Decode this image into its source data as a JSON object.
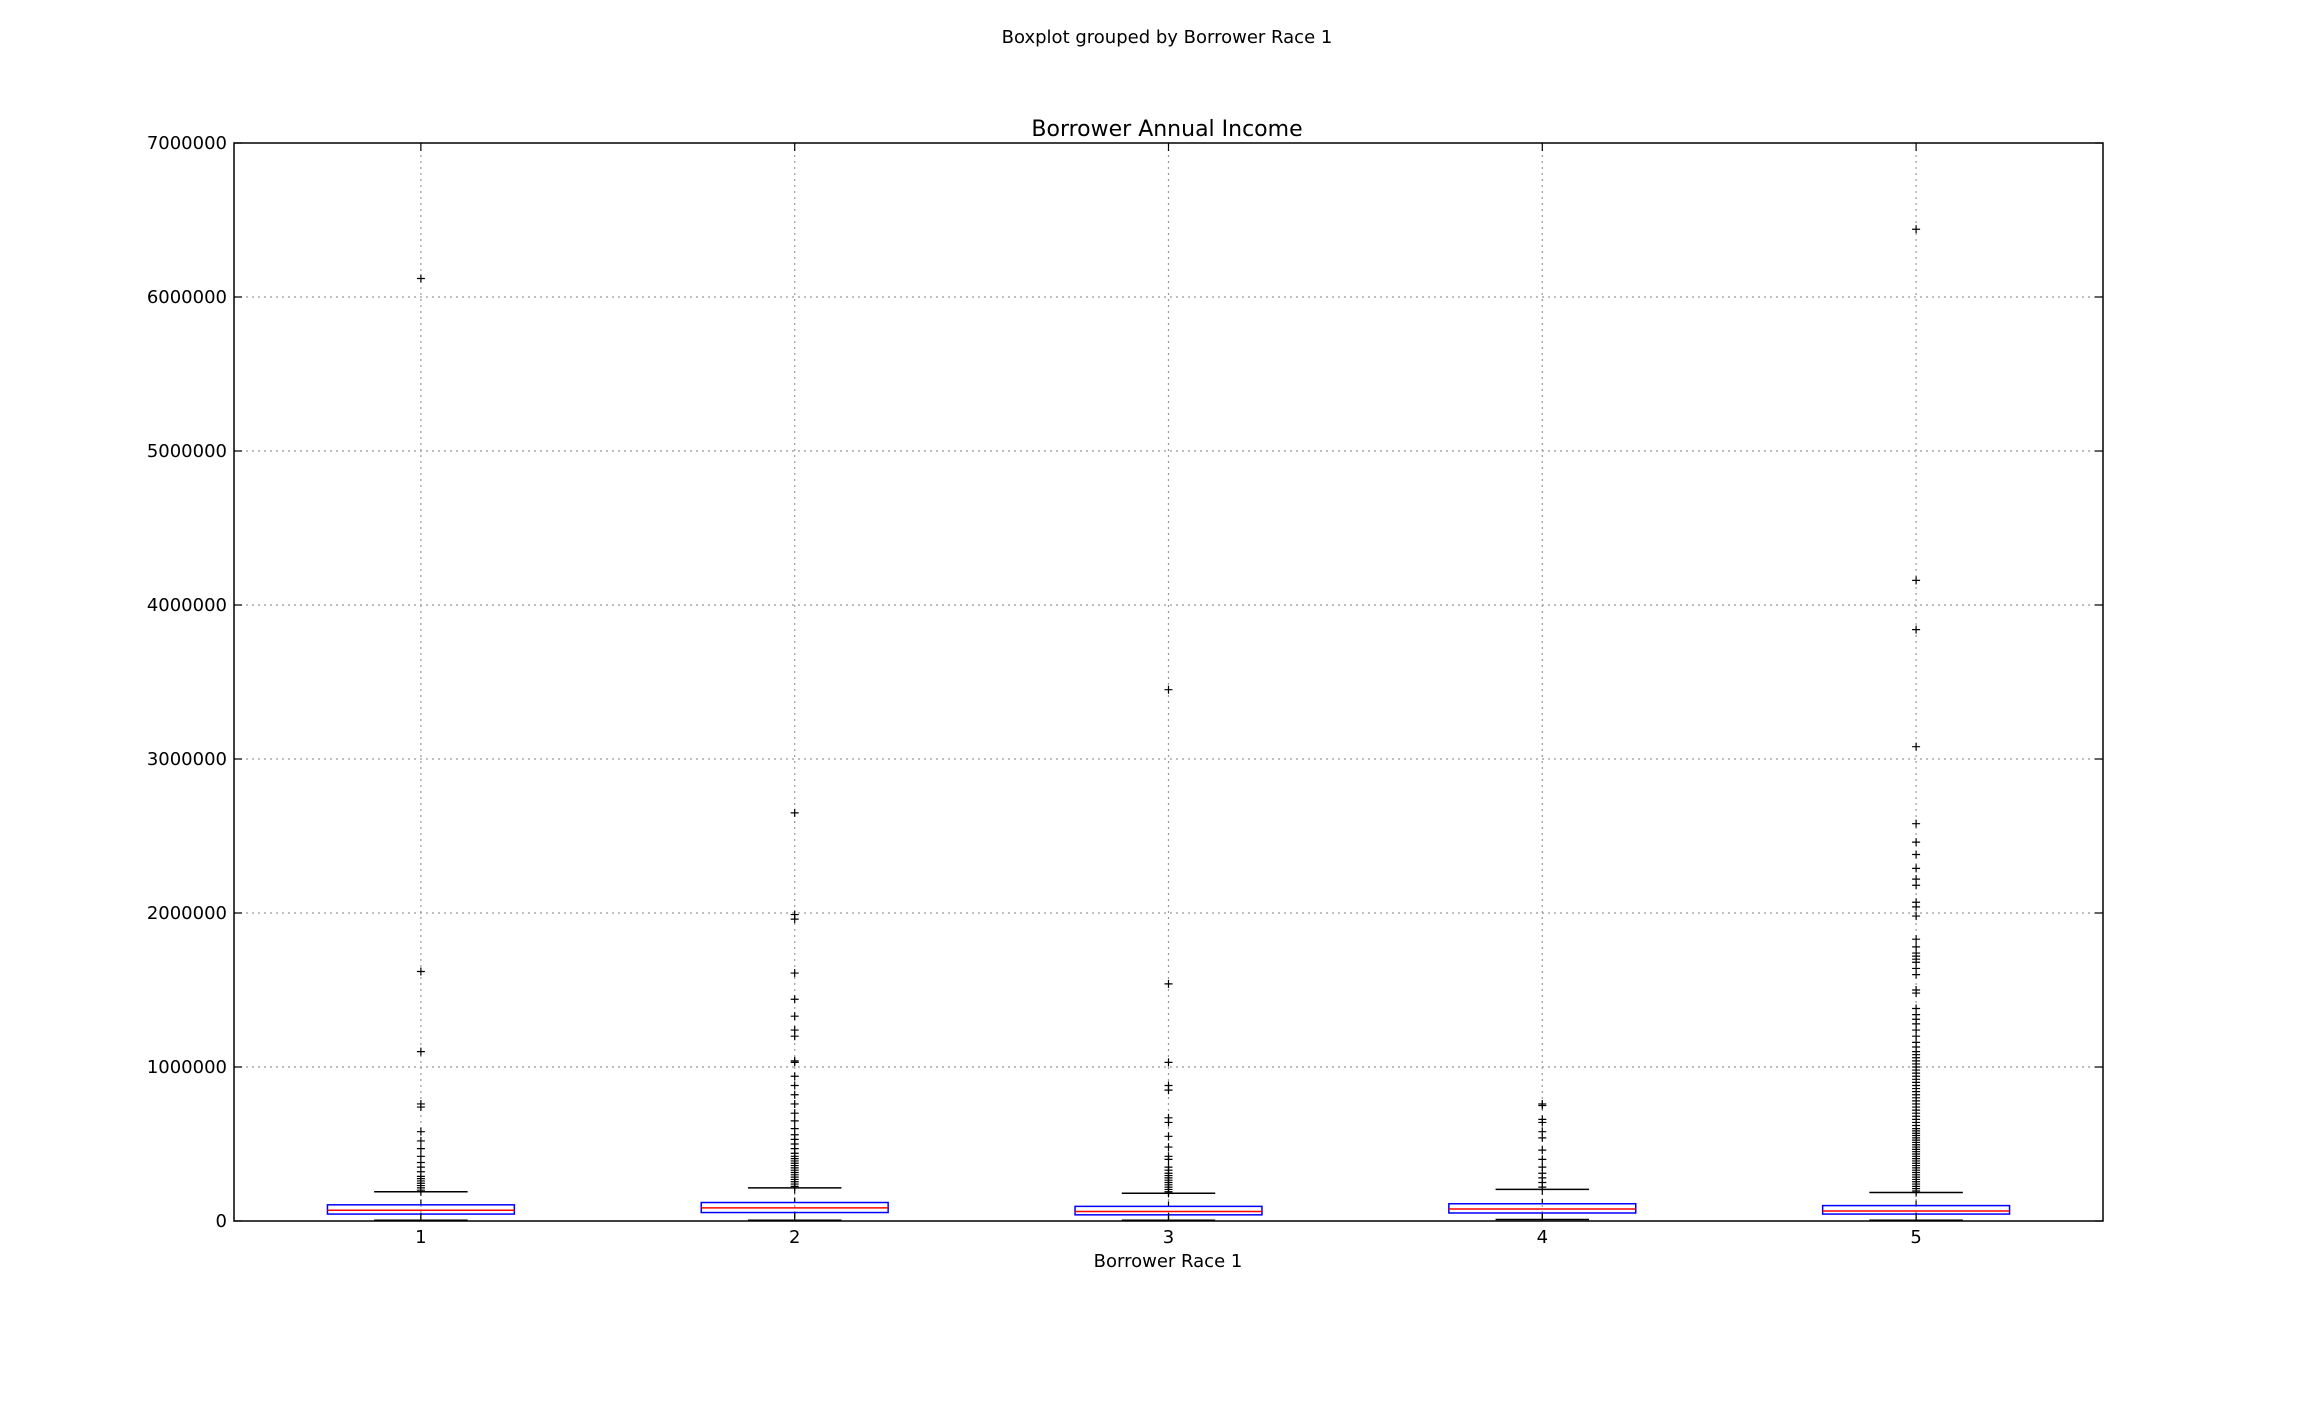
{
  "figure": {
    "suptitle": "Boxplot grouped by Borrower Race 1"
  },
  "chart_data": {
    "type": "boxplot",
    "title": "Borrower Annual Income",
    "xlabel": "Borrower Race 1",
    "ylabel": "",
    "ylim": [
      0,
      7000000
    ],
    "yticks": [
      0,
      1000000,
      2000000,
      3000000,
      4000000,
      5000000,
      6000000,
      7000000
    ],
    "ytick_labels": [
      "0",
      "1000000",
      "2000000",
      "3000000",
      "4000000",
      "5000000",
      "6000000",
      "7000000"
    ],
    "grid": true,
    "colors": {
      "box": "#0000ff",
      "median": "#ff0000",
      "whisker": "#000000",
      "flier": "#000000",
      "grid": "#999999"
    },
    "categories": [
      "1",
      "2",
      "3",
      "4",
      "5"
    ],
    "boxes": [
      {
        "category": "1",
        "whisker_low": 5000,
        "q1": 45000,
        "median": 70000,
        "q3": 105000,
        "whisker_high": 190000,
        "fliers": [
          200000,
          215000,
          230000,
          245000,
          260000,
          275000,
          290000,
          320000,
          350000,
          380000,
          420000,
          470000,
          520000,
          580000,
          740000,
          760000,
          1100000,
          1620000,
          6120000
        ]
      },
      {
        "category": "2",
        "whisker_low": 5000,
        "q1": 55000,
        "median": 85000,
        "q3": 120000,
        "whisker_high": 215000,
        "fliers": [
          225000,
          240000,
          255000,
          270000,
          285000,
          300000,
          315000,
          330000,
          345000,
          360000,
          375000,
          390000,
          405000,
          420000,
          440000,
          470000,
          500000,
          530000,
          560000,
          600000,
          650000,
          700000,
          760000,
          820000,
          880000,
          940000,
          1030000,
          1040000,
          1200000,
          1240000,
          1330000,
          1440000,
          1610000,
          1960000,
          1990000,
          2650000
        ]
      },
      {
        "category": "3",
        "whisker_low": 5000,
        "q1": 40000,
        "median": 62000,
        "q3": 95000,
        "whisker_high": 180000,
        "fliers": [
          190000,
          205000,
          220000,
          235000,
          250000,
          265000,
          280000,
          295000,
          310000,
          330000,
          350000,
          400000,
          420000,
          480000,
          550000,
          640000,
          670000,
          850000,
          880000,
          1030000,
          1540000,
          3450000
        ]
      },
      {
        "category": "4",
        "whisker_low": 10000,
        "q1": 52000,
        "median": 78000,
        "q3": 112000,
        "whisker_high": 205000,
        "fliers": [
          220000,
          250000,
          280000,
          310000,
          350000,
          400000,
          460000,
          540000,
          580000,
          640000,
          660000,
          750000,
          760000
        ]
      },
      {
        "category": "5",
        "whisker_low": 5000,
        "q1": 45000,
        "median": 65000,
        "q3": 100000,
        "whisker_high": 185000,
        "fliers": [
          195000,
          210000,
          225000,
          240000,
          255000,
          270000,
          285000,
          300000,
          315000,
          330000,
          345000,
          360000,
          375000,
          390000,
          405000,
          420000,
          435000,
          450000,
          465000,
          480000,
          495000,
          510000,
          525000,
          540000,
          555000,
          570000,
          585000,
          600000,
          620000,
          640000,
          660000,
          680000,
          700000,
          720000,
          740000,
          760000,
          780000,
          800000,
          820000,
          840000,
          860000,
          880000,
          900000,
          920000,
          940000,
          960000,
          980000,
          1000000,
          1020000,
          1040000,
          1060000,
          1080000,
          1100000,
          1130000,
          1160000,
          1200000,
          1240000,
          1280000,
          1310000,
          1340000,
          1380000,
          1480000,
          1500000,
          1600000,
          1640000,
          1680000,
          1700000,
          1720000,
          1740000,
          1780000,
          1830000,
          1980000,
          2040000,
          2070000,
          2180000,
          2220000,
          2290000,
          2380000,
          2460000,
          2580000,
          3080000,
          3840000,
          4160000,
          6440000
        ]
      }
    ]
  }
}
